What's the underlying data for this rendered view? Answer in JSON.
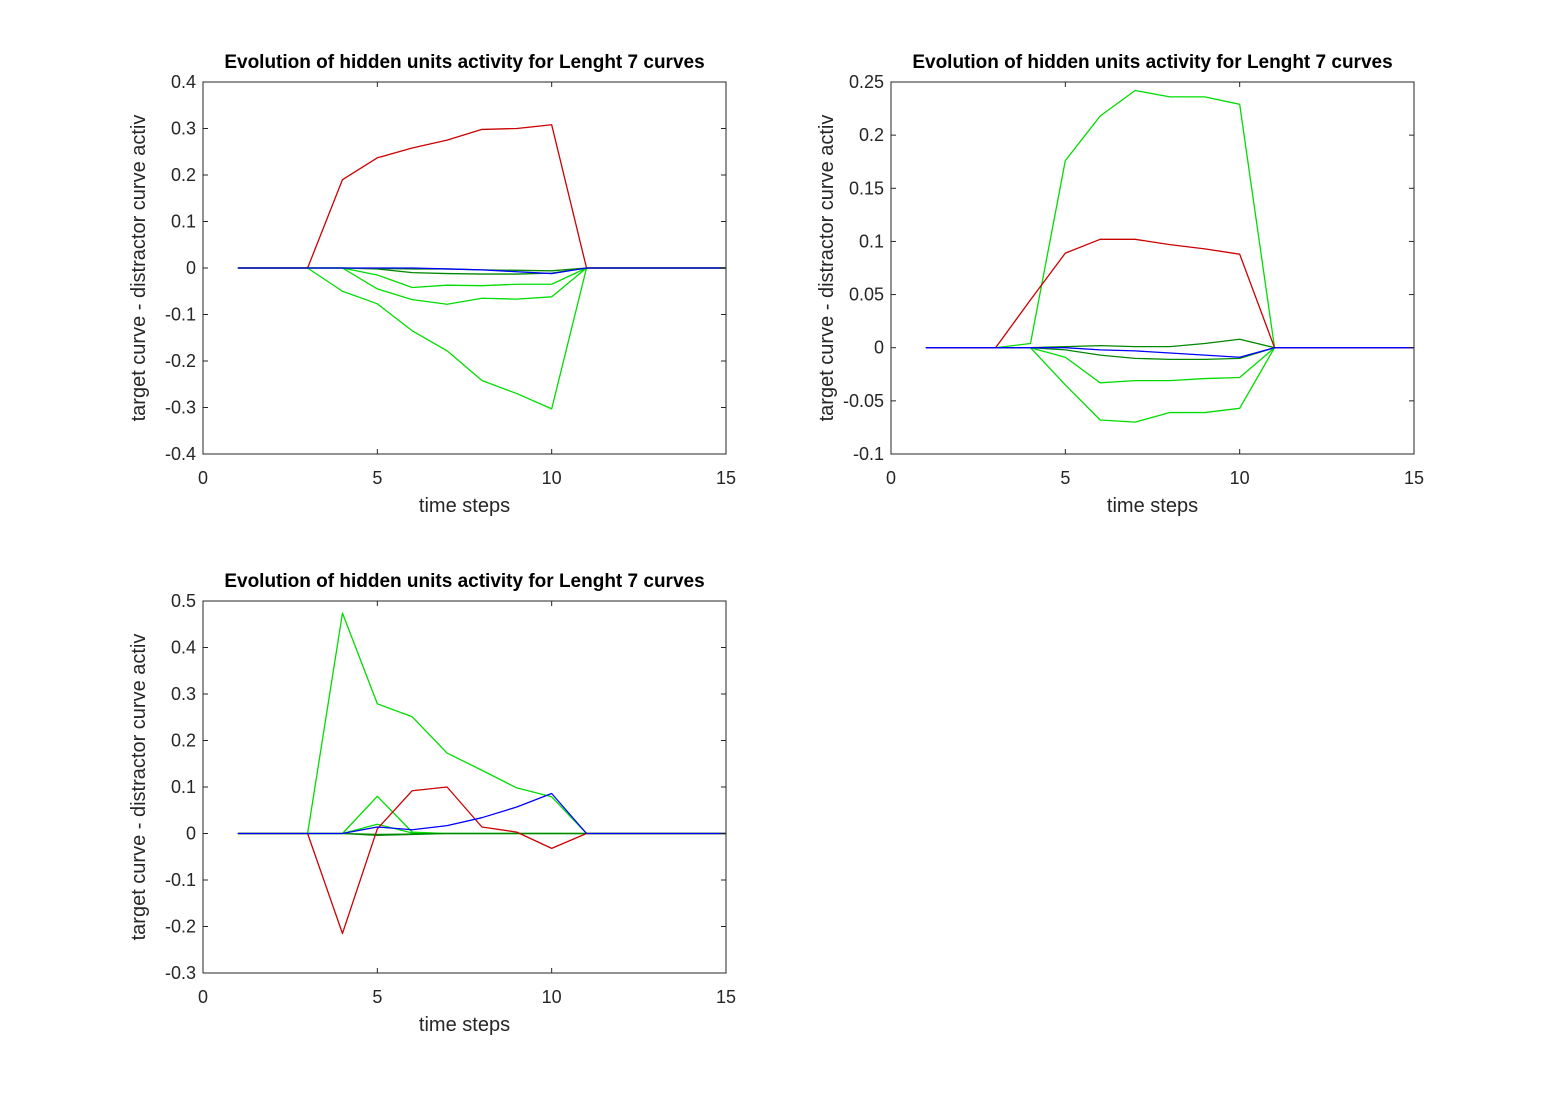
{
  "chart_data": [
    {
      "type": "line",
      "title": "Evolution of hidden units activity for Lenght 7 curves",
      "xlabel": "time steps",
      "ylabel": "target curve - distractor curve activ",
      "xlim": [
        0,
        15
      ],
      "ylim": [
        -0.4,
        0.4
      ],
      "xticks": [
        0,
        5,
        10,
        15
      ],
      "yticks": [
        -0.4,
        -0.3,
        -0.2,
        -0.1,
        0,
        0.1,
        0.2,
        0.3,
        0.4
      ],
      "x": [
        1,
        2,
        3,
        4,
        5,
        6,
        7,
        8,
        9,
        10,
        11,
        12,
        13,
        14,
        15
      ],
      "grid": false,
      "series": [
        {
          "color": "#00dd00",
          "values": [
            0,
            0,
            0,
            -0.05,
            -0.077,
            -0.135,
            -0.178,
            -0.242,
            -0.27,
            -0.303,
            0,
            0,
            0,
            0,
            0
          ]
        },
        {
          "color": "#00dd00",
          "values": [
            0,
            0,
            0,
            0,
            -0.045,
            -0.068,
            -0.078,
            -0.065,
            -0.067,
            -0.062,
            0,
            0,
            0,
            0,
            0
          ]
        },
        {
          "color": "#00dd00",
          "values": [
            0,
            0,
            0,
            0,
            -0.015,
            -0.042,
            -0.037,
            -0.038,
            -0.035,
            -0.035,
            0,
            0,
            0,
            0,
            0
          ]
        },
        {
          "color": "#008800",
          "values": [
            0,
            0,
            0,
            0,
            -0.002,
            -0.01,
            -0.012,
            -0.013,
            -0.013,
            -0.011,
            0,
            0,
            0,
            0,
            0
          ]
        },
        {
          "color": "#008800",
          "values": [
            0,
            0,
            0,
            0,
            -0.001,
            -0.002,
            -0.002,
            -0.004,
            -0.005,
            -0.006,
            0,
            0,
            0,
            0,
            0
          ]
        },
        {
          "color": "#cc0000",
          "values": [
            0,
            0,
            0,
            0.19,
            0.237,
            0.258,
            0.275,
            0.298,
            0.3,
            0.308,
            0,
            0,
            0,
            0,
            0
          ]
        },
        {
          "color": "#0000ff",
          "values": [
            0,
            0,
            0,
            0,
            0,
            0,
            -0.002,
            -0.004,
            -0.008,
            -0.012,
            0,
            0,
            0,
            0,
            0
          ]
        }
      ]
    },
    {
      "type": "line",
      "title": "Evolution of hidden units activity for Lenght 7 curves",
      "xlabel": "time steps",
      "ylabel": "target curve - distractor curve activ",
      "xlim": [
        0,
        15
      ],
      "ylim": [
        -0.1,
        0.25
      ],
      "xticks": [
        0,
        5,
        10,
        15
      ],
      "yticks": [
        -0.1,
        -0.05,
        0,
        0.05,
        0.1,
        0.15,
        0.2,
        0.25
      ],
      "x": [
        1,
        2,
        3,
        4,
        5,
        6,
        7,
        8,
        9,
        10,
        11,
        12,
        13,
        14,
        15
      ],
      "grid": false,
      "series": [
        {
          "color": "#00dd00",
          "values": [
            0,
            0,
            0,
            0.004,
            0.176,
            0.218,
            0.242,
            0.236,
            0.236,
            0.229,
            0,
            0,
            0,
            0,
            0
          ]
        },
        {
          "color": "#00dd00",
          "values": [
            0,
            0,
            0,
            0,
            -0.035,
            -0.068,
            -0.07,
            -0.061,
            -0.061,
            -0.057,
            0,
            0,
            0,
            0,
            0
          ]
        },
        {
          "color": "#00dd00",
          "values": [
            0,
            0,
            0,
            0,
            -0.009,
            -0.033,
            -0.031,
            -0.031,
            -0.029,
            -0.028,
            0,
            0,
            0,
            0,
            0
          ]
        },
        {
          "color": "#008800",
          "values": [
            0,
            0,
            0,
            0,
            -0.002,
            -0.007,
            -0.01,
            -0.011,
            -0.011,
            -0.01,
            0,
            0,
            0,
            0,
            0
          ]
        },
        {
          "color": "#008800",
          "values": [
            0,
            0,
            0,
            0,
            0.001,
            0.002,
            0.001,
            0.001,
            0.004,
            0.008,
            0,
            0,
            0,
            0,
            0
          ]
        },
        {
          "color": "#cc0000",
          "values": [
            0,
            0,
            0,
            0.045,
            0.089,
            0.102,
            0.102,
            0.097,
            0.093,
            0.088,
            0,
            0,
            0,
            0,
            0
          ]
        },
        {
          "color": "#0000ff",
          "values": [
            0,
            0,
            0,
            0,
            0,
            -0.002,
            -0.003,
            -0.005,
            -0.007,
            -0.009,
            0,
            0,
            0,
            0,
            0
          ]
        }
      ]
    },
    {
      "type": "line",
      "title": "Evolution of hidden units activity for Lenght 7 curves",
      "xlabel": "time steps",
      "ylabel": "target curve - distractor curve activ",
      "xlim": [
        0,
        15
      ],
      "ylim": [
        -0.3,
        0.5
      ],
      "xticks": [
        0,
        5,
        10,
        15
      ],
      "yticks": [
        -0.3,
        -0.2,
        -0.1,
        0,
        0.1,
        0.2,
        0.3,
        0.4,
        0.5
      ],
      "x": [
        1,
        2,
        3,
        4,
        5,
        6,
        7,
        8,
        9,
        10,
        11,
        12,
        13,
        14,
        15
      ],
      "grid": false,
      "series": [
        {
          "color": "#00dd00",
          "values": [
            0,
            0,
            0,
            0.474,
            0.279,
            0.251,
            0.173,
            0.136,
            0.098,
            0.079,
            0,
            0,
            0,
            0,
            0
          ]
        },
        {
          "color": "#00dd00",
          "values": [
            0,
            0,
            0,
            0,
            0.08,
            0.003,
            0,
            0,
            0,
            0,
            0,
            0,
            0,
            0,
            0
          ]
        },
        {
          "color": "#00dd00",
          "values": [
            0,
            0,
            0,
            0,
            0.02,
            0.001,
            0,
            0,
            0,
            0,
            0,
            0,
            0,
            0,
            0
          ]
        },
        {
          "color": "#008800",
          "values": [
            0,
            0,
            0,
            0,
            -0.004,
            -0.002,
            0,
            0,
            0,
            0,
            0,
            0,
            0,
            0,
            0
          ]
        },
        {
          "color": "#008800",
          "values": [
            0,
            0,
            0,
            0,
            -0.002,
            -0.001,
            0,
            0,
            0,
            0,
            0,
            0,
            0,
            0,
            0
          ]
        },
        {
          "color": "#cc0000",
          "values": [
            0,
            0,
            0,
            -0.215,
            0.01,
            0.092,
            0.1,
            0.014,
            0.003,
            -0.032,
            0,
            0,
            0,
            0,
            0
          ]
        },
        {
          "color": "#0000ff",
          "values": [
            0,
            0,
            0,
            0,
            0.014,
            0.008,
            0.017,
            0.034,
            0.057,
            0.086,
            0,
            0,
            0,
            0,
            0
          ]
        }
      ]
    }
  ]
}
